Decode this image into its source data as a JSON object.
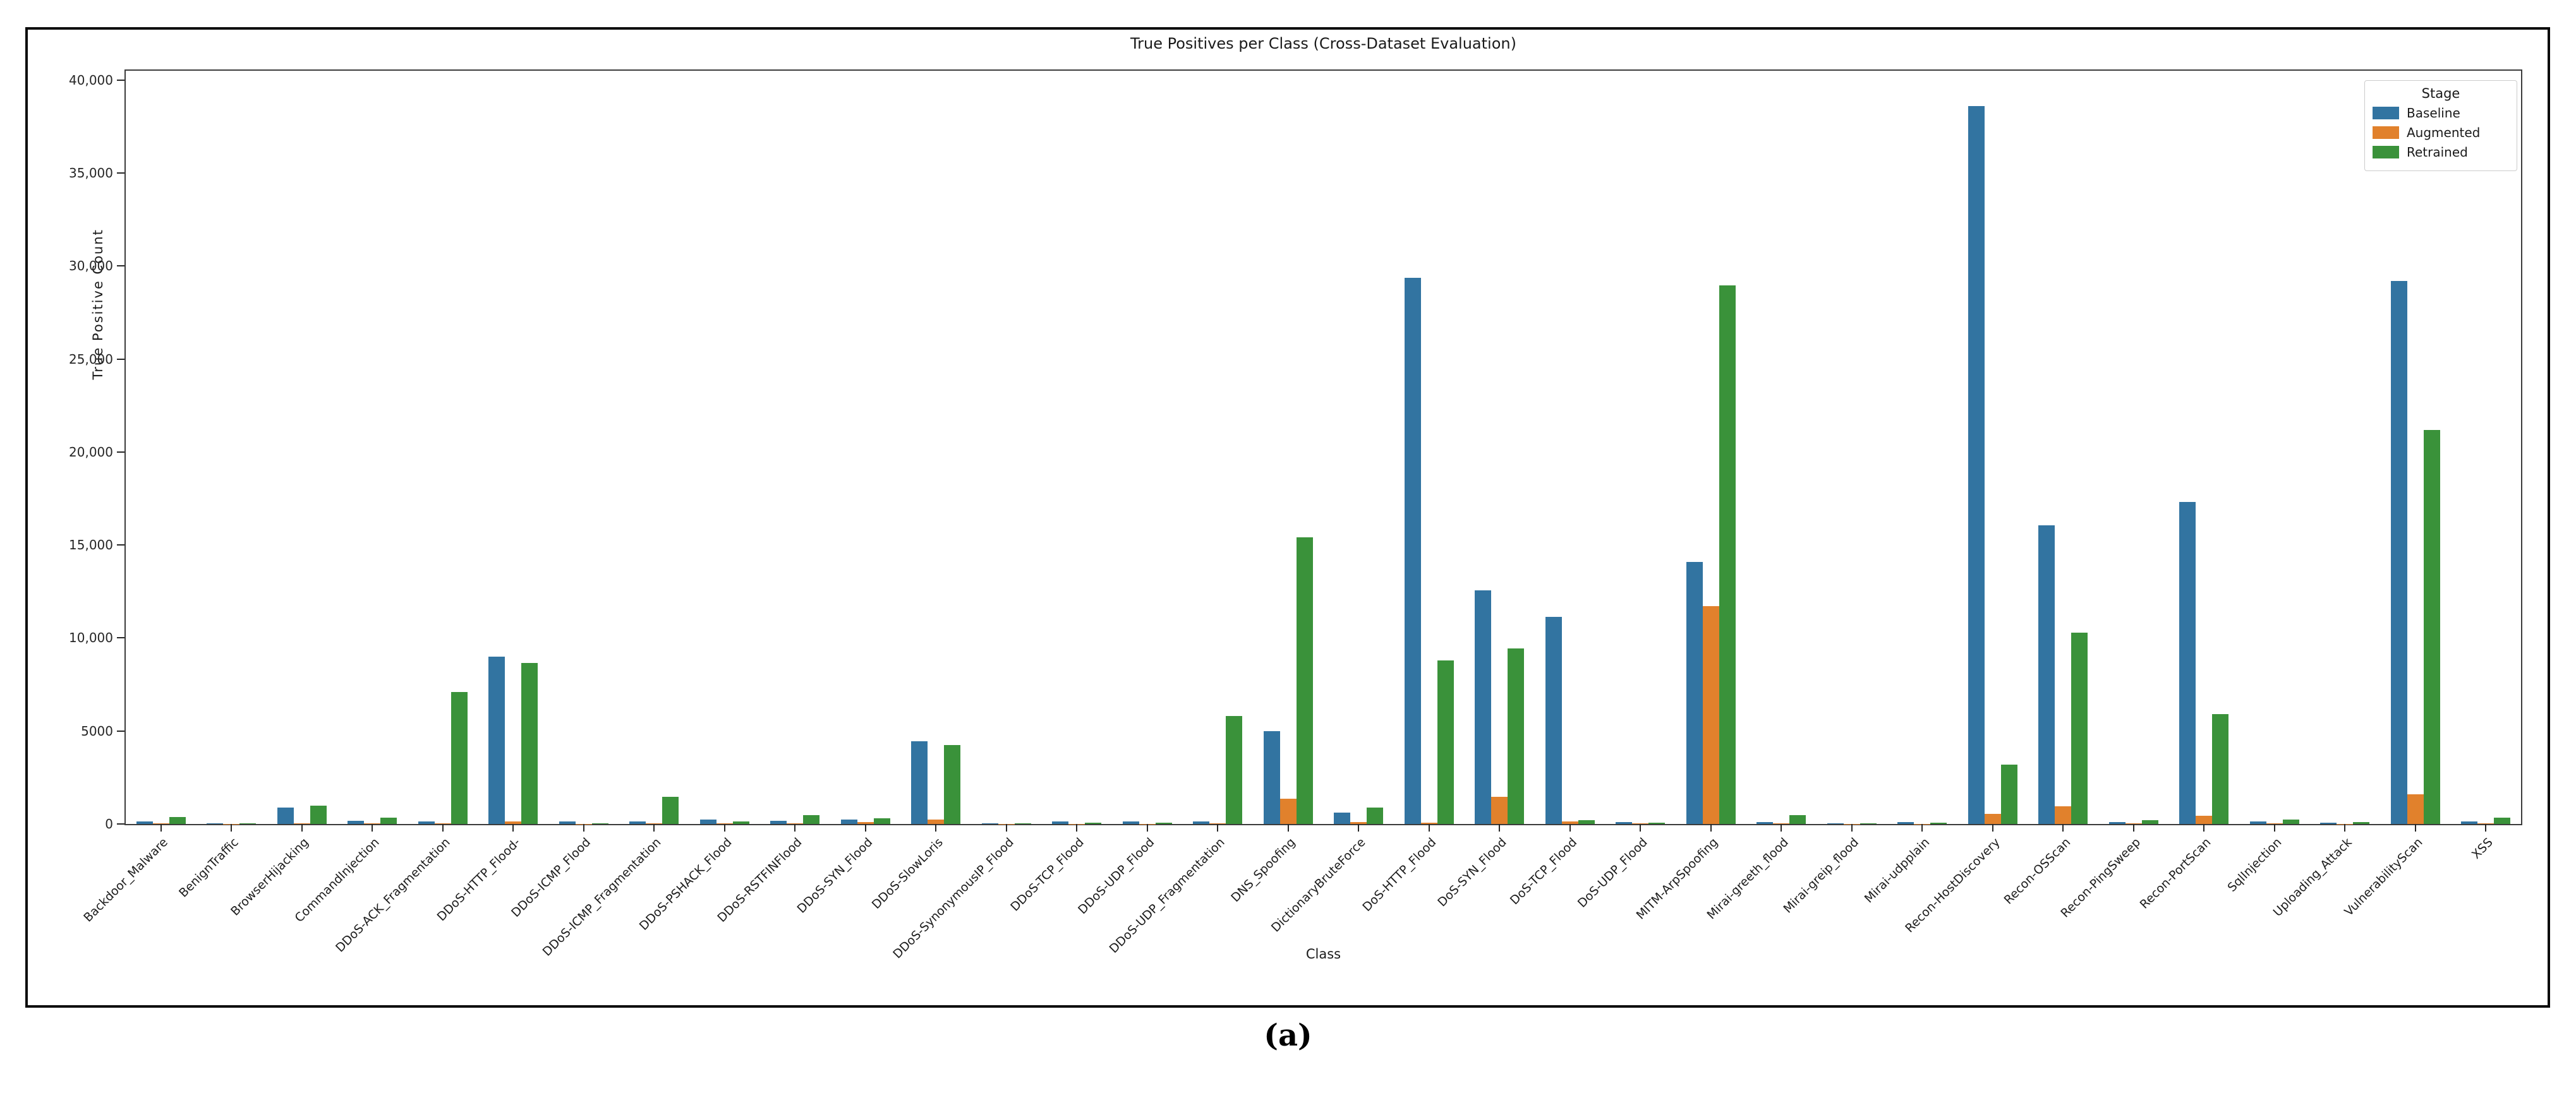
{
  "figure": {
    "title": "True Positives per Class (Cross-Dataset Evaluation)",
    "xlabel": "Class",
    "ylabel": "True Positive Count",
    "caption": "(a)"
  },
  "legend": {
    "title": "Stage",
    "position": "upper right"
  },
  "axes": {
    "y_max": 40500,
    "y_ticks": [
      {
        "value": 0,
        "label": "0"
      },
      {
        "value": 5000,
        "label": "5000"
      },
      {
        "value": 10000,
        "label": "10,000"
      },
      {
        "value": 15000,
        "label": "15,000"
      },
      {
        "value": 20000,
        "label": "20,000"
      },
      {
        "value": 25000,
        "label": "25,000"
      },
      {
        "value": 30000,
        "label": "30,000"
      },
      {
        "value": 35000,
        "label": "35,000"
      },
      {
        "value": 40000,
        "label": "40,000"
      }
    ]
  },
  "chart_data": {
    "type": "bar",
    "title": "True Positives per Class (Cross-Dataset Evaluation)",
    "xlabel": "Class",
    "ylabel": "True Positive Count",
    "ylim": [
      0,
      40500
    ],
    "grid": false,
    "legend_title": "Stage",
    "legend_position": "upper right",
    "categories": [
      "Backdoor_Malware",
      "BenignTraffic",
      "BrowserHijacking",
      "CommandInjection",
      "DDoS-ACK_Fragmentation",
      "DDoS-HTTP_Flood-",
      "DDoS-ICMP_Flood",
      "DDoS-ICMP_Fragmentation",
      "DDoS-PSHACK_Flood",
      "DDoS-RSTFINFlood",
      "DDoS-SYN_Flood",
      "DDoS-SlowLoris",
      "DDoS-SynonymousIP_Flood",
      "DDoS-TCP_Flood",
      "DDoS-UDP_Flood",
      "DDoS-UDP_Fragmentation",
      "DNS_Spoofing",
      "DictionaryBruteForce",
      "DoS-HTTP_Flood",
      "DoS-SYN_Flood",
      "DoS-TCP_Flood",
      "DoS-UDP_Flood",
      "MITM-ArpSpoofing",
      "Mirai-greeth_flood",
      "Mirai-greip_flood",
      "Mirai-udpplain",
      "Recon-HostDiscovery",
      "Recon-OSScan",
      "Recon-PingSweep",
      "Recon-PortScan",
      "SqlInjection",
      "Uploading_Attack",
      "VulnerabilityScan",
      "XSS"
    ],
    "series": [
      {
        "name": "Baseline",
        "color": "#3274a1",
        "values": [
          150,
          30,
          870,
          160,
          140,
          9000,
          120,
          150,
          240,
          160,
          250,
          4450,
          40,
          140,
          150,
          130,
          5000,
          600,
          29350,
          12550,
          11150,
          110,
          14100,
          110,
          30,
          90,
          38600,
          16050,
          100,
          17300,
          140,
          70,
          29200,
          140
        ]
      },
      {
        "name": "Augmented",
        "color": "#e1812c",
        "values": [
          20,
          10,
          30,
          20,
          20,
          120,
          10,
          20,
          20,
          20,
          90,
          230,
          10,
          10,
          10,
          20,
          1350,
          100,
          60,
          1450,
          130,
          20,
          11700,
          20,
          10,
          10,
          550,
          950,
          30,
          450,
          20,
          10,
          1600,
          30
        ]
      },
      {
        "name": "Retrained",
        "color": "#3a923a",
        "values": [
          380,
          40,
          980,
          330,
          7100,
          8650,
          40,
          1450,
          150,
          470,
          300,
          4250,
          40,
          60,
          70,
          5800,
          15400,
          900,
          8800,
          9450,
          200,
          70,
          28950,
          480,
          40,
          60,
          3200,
          10300,
          200,
          5900,
          230,
          110,
          21200,
          330
        ]
      }
    ]
  }
}
